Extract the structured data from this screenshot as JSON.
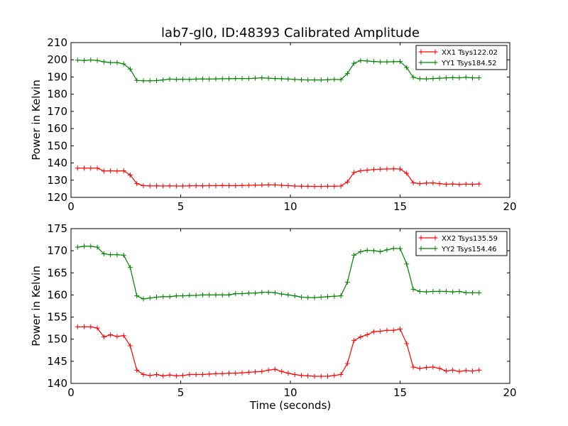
{
  "chart_data": [
    {
      "type": "line",
      "title": "lab7-gl0, ID:48393 Calibrated Amplitude",
      "xlabel": "",
      "ylabel": "Power in Kelvin",
      "xlim": [
        0,
        20
      ],
      "ylim": [
        120,
        210
      ],
      "xticks": [
        "0",
        "5",
        "10",
        "15",
        "20"
      ],
      "yticks": [
        "120",
        "130",
        "140",
        "150",
        "160",
        "170",
        "180",
        "190",
        "200",
        "210"
      ],
      "grid": false,
      "legend_position": "top-right",
      "series": [
        {
          "name": "XX1 Tsys122.02",
          "color": "#ff0000",
          "x": [
            0.3,
            0.6,
            0.9,
            1.2,
            1.5,
            1.8,
            2.1,
            2.4,
            2.7,
            3.0,
            3.3,
            3.6,
            3.9,
            4.2,
            4.5,
            4.8,
            5.1,
            5.4,
            5.7,
            6.0,
            6.3,
            6.6,
            6.9,
            7.2,
            7.5,
            7.8,
            8.1,
            8.4,
            8.7,
            9.0,
            9.3,
            9.6,
            9.9,
            10.2,
            10.5,
            10.8,
            11.1,
            11.4,
            11.7,
            12.0,
            12.3,
            12.6,
            12.9,
            13.2,
            13.5,
            13.8,
            14.1,
            14.4,
            14.7,
            15.0,
            15.3,
            15.6,
            15.9,
            16.2,
            16.5,
            16.8,
            17.1,
            17.4,
            17.7,
            18.0,
            18.3,
            18.6
          ],
          "y": [
            137.0,
            137.0,
            137.0,
            137.0,
            135.3,
            135.5,
            135.3,
            135.5,
            133.0,
            128.0,
            126.8,
            126.7,
            126.7,
            126.6,
            126.7,
            126.6,
            126.6,
            126.7,
            126.8,
            126.7,
            126.8,
            126.8,
            126.9,
            126.8,
            126.8,
            126.9,
            127.0,
            127.1,
            127.2,
            127.3,
            127.3,
            127.0,
            126.8,
            126.6,
            126.5,
            126.5,
            126.4,
            126.4,
            126.5,
            126.5,
            126.6,
            129.0,
            134.5,
            135.5,
            135.8,
            136.2,
            136.4,
            136.5,
            136.6,
            136.5,
            134.0,
            128.5,
            128.0,
            128.3,
            128.4,
            128.0,
            127.6,
            127.8,
            127.5,
            127.7,
            127.6,
            127.8
          ]
        },
        {
          "name": "YY1 Tsys184.52",
          "color": "#008000",
          "x": [
            0.3,
            0.6,
            0.9,
            1.2,
            1.5,
            1.8,
            2.1,
            2.4,
            2.7,
            3.0,
            3.3,
            3.6,
            3.9,
            4.2,
            4.5,
            4.8,
            5.1,
            5.4,
            5.7,
            6.0,
            6.3,
            6.6,
            6.9,
            7.2,
            7.5,
            7.8,
            8.1,
            8.4,
            8.7,
            9.0,
            9.3,
            9.6,
            9.9,
            10.2,
            10.5,
            10.8,
            11.1,
            11.4,
            11.7,
            12.0,
            12.3,
            12.6,
            12.9,
            13.2,
            13.5,
            13.8,
            14.1,
            14.4,
            14.7,
            15.0,
            15.3,
            15.6,
            15.9,
            16.2,
            16.5,
            16.8,
            17.1,
            17.4,
            17.7,
            18.0,
            18.3,
            18.6
          ],
          "y": [
            199.8,
            199.6,
            199.9,
            199.6,
            198.8,
            198.4,
            198.4,
            197.6,
            194.6,
            188.0,
            187.8,
            187.8,
            187.9,
            188.3,
            188.8,
            188.6,
            188.7,
            188.6,
            188.8,
            188.9,
            188.8,
            188.9,
            189.0,
            189.0,
            189.1,
            189.1,
            189.1,
            189.3,
            189.5,
            189.3,
            189.1,
            189.0,
            188.8,
            188.6,
            188.4,
            188.3,
            188.3,
            188.3,
            188.4,
            188.6,
            188.5,
            192.0,
            198.0,
            199.5,
            199.3,
            199.0,
            198.8,
            198.8,
            198.9,
            199.0,
            195.5,
            189.8,
            189.0,
            188.9,
            189.1,
            189.3,
            189.5,
            189.6,
            189.5,
            189.8,
            189.5,
            189.5
          ]
        }
      ]
    },
    {
      "type": "line",
      "title": "",
      "xlabel": "Time (seconds)",
      "ylabel": "Power in Kelvin",
      "xlim": [
        0,
        20
      ],
      "ylim": [
        140,
        175
      ],
      "xticks": [
        "0",
        "5",
        "10",
        "15",
        "20"
      ],
      "yticks": [
        "140",
        "145",
        "150",
        "155",
        "160",
        "165",
        "170",
        "175"
      ],
      "grid": false,
      "legend_position": "top-right",
      "series": [
        {
          "name": "XX2 Tsys135.59",
          "color": "#ff0000",
          "x": [
            0.3,
            0.6,
            0.9,
            1.2,
            1.5,
            1.8,
            2.1,
            2.4,
            2.7,
            3.0,
            3.3,
            3.6,
            3.9,
            4.2,
            4.5,
            4.8,
            5.1,
            5.4,
            5.7,
            6.0,
            6.3,
            6.6,
            6.9,
            7.2,
            7.5,
            7.8,
            8.1,
            8.4,
            8.7,
            9.0,
            9.3,
            9.6,
            9.9,
            10.2,
            10.5,
            10.8,
            11.1,
            11.4,
            11.7,
            12.0,
            12.3,
            12.6,
            12.9,
            13.2,
            13.5,
            13.8,
            14.1,
            14.4,
            14.7,
            15.0,
            15.3,
            15.6,
            15.9,
            16.2,
            16.5,
            16.8,
            17.1,
            17.4,
            17.7,
            18.0,
            18.3,
            18.6
          ],
          "y": [
            152.8,
            152.8,
            152.8,
            152.5,
            150.5,
            151.0,
            150.6,
            150.8,
            148.5,
            143.0,
            142.0,
            141.8,
            142.0,
            141.7,
            141.9,
            141.7,
            141.8,
            142.0,
            142.0,
            142.0,
            142.1,
            142.2,
            142.2,
            142.3,
            142.3,
            142.4,
            142.5,
            142.6,
            142.7,
            143.0,
            143.2,
            142.7,
            142.3,
            142.0,
            141.8,
            141.7,
            141.6,
            141.6,
            141.6,
            141.8,
            142.0,
            144.5,
            149.7,
            150.5,
            151.0,
            151.7,
            151.8,
            152.0,
            152.0,
            152.3,
            149.0,
            143.7,
            143.4,
            143.6,
            143.7,
            143.4,
            142.8,
            143.0,
            142.7,
            142.9,
            142.8,
            143.0
          ]
        },
        {
          "name": "YY2 Tsys154.46",
          "color": "#008000",
          "x": [
            0.3,
            0.6,
            0.9,
            1.2,
            1.5,
            1.8,
            2.1,
            2.4,
            2.7,
            3.0,
            3.3,
            3.6,
            3.9,
            4.2,
            4.5,
            4.8,
            5.1,
            5.4,
            5.7,
            6.0,
            6.3,
            6.6,
            6.9,
            7.2,
            7.5,
            7.8,
            8.1,
            8.4,
            8.7,
            9.0,
            9.3,
            9.6,
            9.9,
            10.2,
            10.5,
            10.8,
            11.1,
            11.4,
            11.7,
            12.0,
            12.3,
            12.6,
            12.9,
            13.2,
            13.5,
            13.8,
            14.1,
            14.4,
            14.7,
            15.0,
            15.3,
            15.6,
            15.9,
            16.2,
            16.5,
            16.8,
            17.1,
            17.4,
            17.7,
            18.0,
            18.3,
            18.6
          ],
          "y": [
            170.8,
            171.0,
            171.0,
            170.8,
            169.3,
            169.1,
            169.1,
            169.0,
            166.2,
            159.8,
            159.1,
            159.3,
            159.5,
            159.6,
            159.6,
            159.8,
            159.8,
            159.9,
            159.9,
            160.0,
            160.0,
            160.0,
            160.0,
            160.0,
            160.3,
            160.3,
            160.4,
            160.4,
            160.6,
            160.6,
            160.5,
            160.2,
            160.0,
            159.8,
            159.5,
            159.4,
            159.4,
            159.5,
            159.6,
            159.7,
            159.8,
            162.9,
            169.0,
            169.8,
            170.1,
            170.0,
            169.8,
            170.2,
            170.5,
            170.5,
            167.0,
            161.3,
            160.8,
            160.7,
            160.8,
            160.8,
            160.8,
            160.7,
            160.8,
            160.5,
            160.5,
            160.5
          ]
        }
      ]
    }
  ]
}
